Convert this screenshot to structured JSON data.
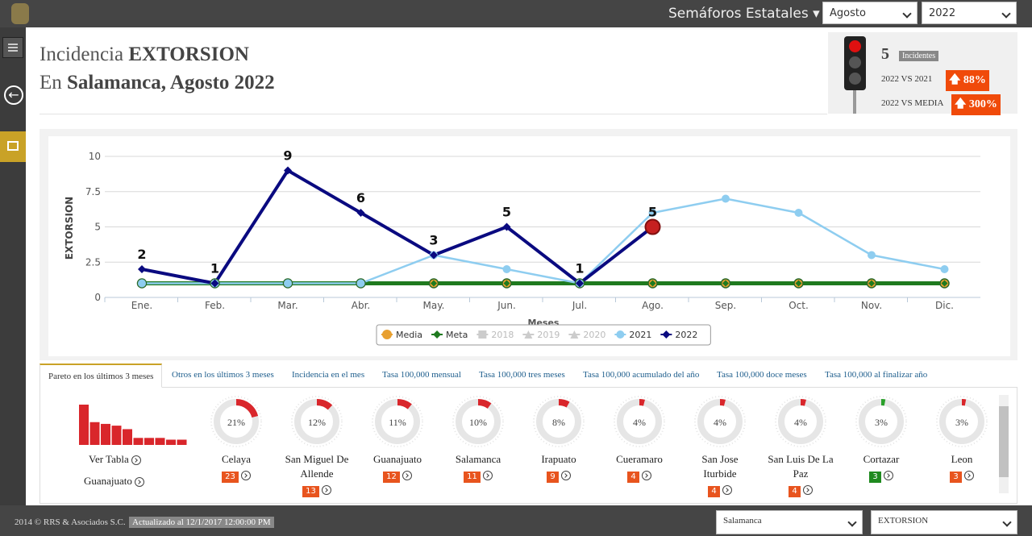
{
  "topbar": {
    "menu": "Semáforos Estatales",
    "month": "Agosto",
    "year": "2022"
  },
  "header": {
    "title_prefix": "Incidencia",
    "title_bold": "EXTORSION",
    "subtitle_prefix": "En",
    "subtitle_bold": "Salamanca, Agosto 2022"
  },
  "summary": {
    "count": "5",
    "count_label": "Incidentes",
    "rows": [
      {
        "label": "2022 VS 2021",
        "value": "88%"
      },
      {
        "label": "2022 VS MEDIA",
        "value": "300%"
      }
    ]
  },
  "chart_data": {
    "type": "line",
    "y_label": "EXTORSION",
    "x_label": "Meses",
    "categories": [
      "Ene.",
      "Feb.",
      "Mar.",
      "Abr.",
      "May.",
      "Jun.",
      "Jul.",
      "Ago.",
      "Sep.",
      "Oct.",
      "Nov.",
      "Dic."
    ],
    "ylim": [
      0,
      10
    ],
    "yticks": [
      0,
      2.5,
      5,
      7.5,
      10
    ],
    "grid": true,
    "legend": "bottom",
    "series": [
      {
        "name": "Media",
        "color": "#e8a030",
        "marker": "circle",
        "values": [
          1,
          1,
          1,
          1,
          1,
          1,
          1,
          1,
          1,
          1,
          1,
          1
        ]
      },
      {
        "name": "Meta",
        "color": "#1f7a1f",
        "marker": "diamond",
        "values": [
          1,
          1,
          1,
          1,
          1,
          1,
          1,
          1,
          1,
          1,
          1,
          1
        ]
      },
      {
        "name": "2018",
        "color": "#cccccc",
        "marker": "square",
        "hidden": true,
        "values": [
          null,
          null,
          null,
          null,
          null,
          null,
          null,
          null,
          null,
          null,
          null,
          null
        ]
      },
      {
        "name": "2019",
        "color": "#cccccc",
        "marker": "triangle",
        "hidden": true,
        "values": [
          null,
          null,
          null,
          null,
          null,
          null,
          null,
          null,
          null,
          null,
          null,
          null
        ]
      },
      {
        "name": "2020",
        "color": "#cccccc",
        "marker": "triangle",
        "hidden": true,
        "values": [
          null,
          null,
          null,
          null,
          null,
          null,
          null,
          null,
          null,
          null,
          null,
          null
        ]
      },
      {
        "name": "2021",
        "color": "#8ecdf0",
        "marker": "circle",
        "values": [
          1,
          1,
          1,
          1,
          3,
          2,
          1,
          6,
          7,
          6,
          3,
          2
        ]
      },
      {
        "name": "2022",
        "color": "#0a0a80",
        "marker": "diamond",
        "data_labels": true,
        "current_color": "#c62020",
        "values": [
          2,
          1,
          9,
          6,
          3,
          5,
          1,
          5,
          null,
          null,
          null,
          null
        ]
      }
    ]
  },
  "tabs": [
    "Pareto en los últimos 3 meses",
    "Otros en los últimos 3 meses",
    "Incidencia en el mes",
    "Tasa 100,000 mensual",
    "Tasa 100,000 tres meses",
    "Tasa 100,000 acumulado del año",
    "Tasa 100,000 doce meses",
    "Tasa 100,000 al finalizar año"
  ],
  "pareto": {
    "links": [
      "Ver Tabla",
      "Guanajuato"
    ],
    "items": [
      {
        "name": "Celaya",
        "pct": 21,
        "pct_label": "21%",
        "count": 23,
        "color": "#e8541e"
      },
      {
        "name": "San Miguel De Allende",
        "pct": 12,
        "pct_label": "12%",
        "count": 13,
        "color": "#e8541e"
      },
      {
        "name": "Guanajuato",
        "pct": 11,
        "pct_label": "11%",
        "count": 12,
        "color": "#e8541e"
      },
      {
        "name": "Salamanca",
        "pct": 10,
        "pct_label": "10%",
        "count": 11,
        "color": "#e8541e"
      },
      {
        "name": "Irapuato",
        "pct": 8,
        "pct_label": "8%",
        "count": 9,
        "color": "#e8541e"
      },
      {
        "name": "Cueramaro",
        "pct": 4,
        "pct_label": "4%",
        "count": 4,
        "color": "#e8541e"
      },
      {
        "name": "San Jose Iturbide",
        "pct": 4,
        "pct_label": "4%",
        "count": 4,
        "color": "#e8541e"
      },
      {
        "name": "San Luis De La Paz",
        "pct": 4,
        "pct_label": "4%",
        "count": 4,
        "color": "#e8541e"
      },
      {
        "name": "Cortazar",
        "pct": 3,
        "pct_label": "3%",
        "count": 3,
        "color": "#1f8a1f"
      },
      {
        "name": "Leon",
        "pct": 3,
        "pct_label": "3%",
        "count": 3,
        "color": "#e8541e"
      }
    ]
  },
  "footer": {
    "copyright": "2014 © RRS & Asociados S.C.",
    "updated": "Actualizado al 12/1/2017 12:00:00 PM",
    "municipio": "Salamanca",
    "delito": "EXTORSION"
  }
}
